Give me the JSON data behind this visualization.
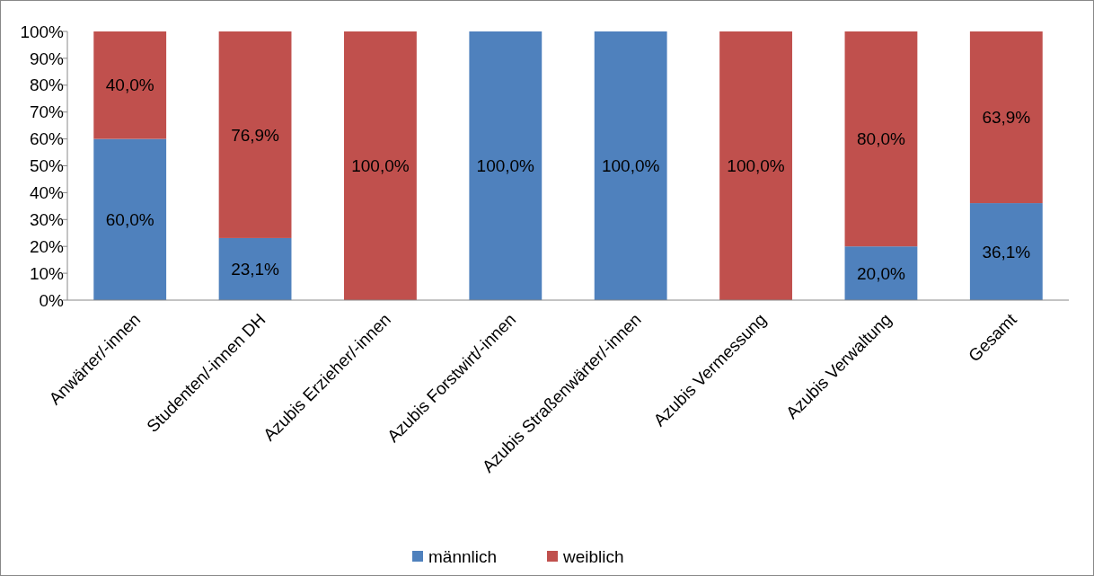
{
  "chart_data": {
    "type": "bar",
    "stacked": true,
    "categories": [
      "Anwärter/-innen",
      "Studenten/-innen DH",
      "Azubis Erzieher/-innen",
      "Azubis Forstwirt/-innen",
      "Azubis Straßenwärter/-innen",
      "Azubis Vermessung",
      "Azubis Verwaltung",
      "Gesamt"
    ],
    "series": [
      {
        "name": "männlich",
        "color": "#4f81bd",
        "values": [
          60,
          23.1,
          0,
          100,
          100,
          0,
          20,
          36.1
        ],
        "value_labels": [
          "60,0%",
          "23,1%",
          null,
          "100,0%",
          "100,0%",
          null,
          "20,0%",
          "36,1%"
        ]
      },
      {
        "name": "weiblich",
        "color": "#c0504d",
        "values": [
          40,
          76.9,
          100,
          0,
          0,
          100,
          80,
          63.9
        ],
        "value_labels": [
          "40,0%",
          "76,9%",
          "100,0%",
          null,
          null,
          "100,0%",
          "80,0%",
          "63,9%"
        ]
      }
    ],
    "ylim": [
      0,
      100
    ],
    "yticks": [
      {
        "value": 0,
        "label": "0%"
      },
      {
        "value": 10,
        "label": "10%"
      },
      {
        "value": 20,
        "label": "20%"
      },
      {
        "value": 30,
        "label": "30%"
      },
      {
        "value": 40,
        "label": "40%"
      },
      {
        "value": 50,
        "label": "50%"
      },
      {
        "value": 60,
        "label": "60%"
      },
      {
        "value": 70,
        "label": "70%"
      },
      {
        "value": 80,
        "label": "80%"
      },
      {
        "value": 90,
        "label": "90%"
      },
      {
        "value": 100,
        "label": "100%"
      }
    ],
    "legend": "bottom"
  }
}
